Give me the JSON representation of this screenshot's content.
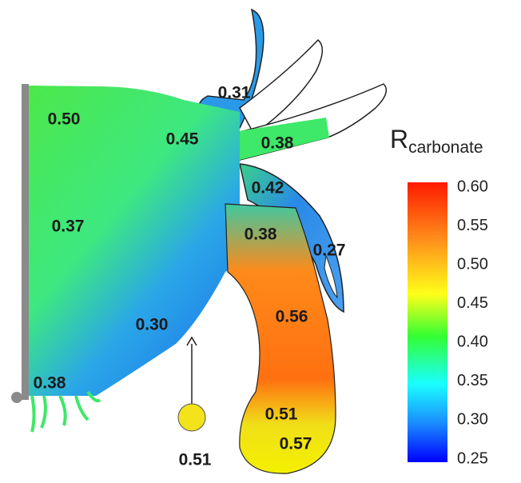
{
  "colorbar": {
    "title": "R",
    "subscript": "carbonate",
    "ticks": [
      "0.60",
      "0.55",
      "0.50",
      "0.45",
      "0.40",
      "0.35",
      "0.30",
      "0.25"
    ]
  },
  "regions": [
    {
      "label": "0.50"
    },
    {
      "label": "0.45"
    },
    {
      "label": "0.31"
    },
    {
      "label": "0.38"
    },
    {
      "label": "0.42"
    },
    {
      "label": "0.37"
    },
    {
      "label": "0.38"
    },
    {
      "label": "0.27"
    },
    {
      "label": "0.56"
    },
    {
      "label": "0.30"
    },
    {
      "label": "0.38"
    },
    {
      "label": "0.51"
    },
    {
      "label": "0.57"
    }
  ],
  "marker": {
    "label": "0.51"
  }
}
